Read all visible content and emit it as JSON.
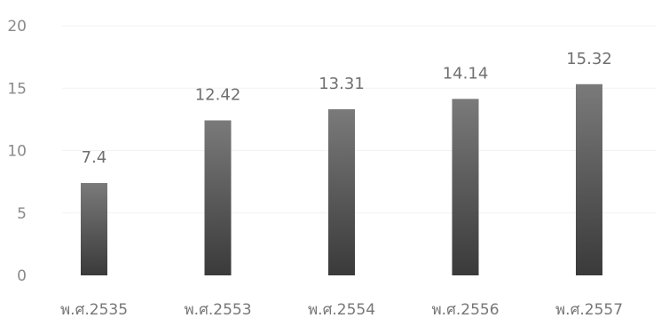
{
  "chart_data": {
    "type": "bar",
    "categories": [
      "พ.ศ.2535",
      "พ.ศ.2553",
      "พ.ศ.2554",
      "พ.ศ.2556",
      "พ.ศ.2557"
    ],
    "series": [
      {
        "values": [
          7.4,
          12.42,
          13.31,
          14.14,
          15.32
        ]
      }
    ],
    "data_labels": [
      "7.4",
      "12.42",
      "13.31",
      "14.14",
      "15.32"
    ],
    "y_ticks": [
      "0",
      "5",
      "10",
      "15",
      "20"
    ],
    "ylim": [
      0,
      20
    ],
    "title": "",
    "xlabel": "",
    "ylabel": "",
    "grid": true,
    "legend": "none",
    "colors": {
      "bar_top": "#7a7a7a",
      "bar_bottom": "#3a3a3a",
      "grid": "#f2f2f2"
    }
  }
}
